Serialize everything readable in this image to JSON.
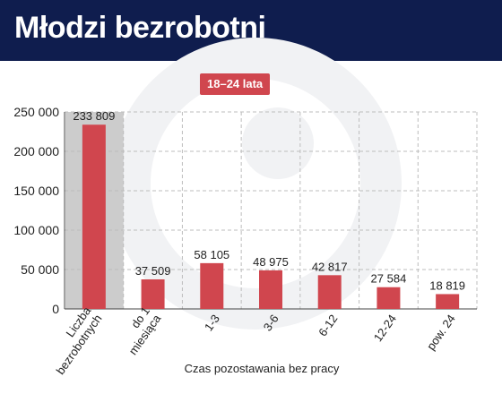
{
  "header": {
    "title": "Młodzi bezrobotni"
  },
  "badge": {
    "label": "18–24 lata"
  },
  "colors": {
    "header_bg": "#0f1d4e",
    "bar": "#d0464e",
    "highlight_column": "#cccccc",
    "badge": "#d0464e"
  },
  "chart_data": {
    "type": "bar",
    "title": "Młodzi bezrobotni",
    "subtitle": "18–24 lata",
    "xlabel": "Czas pozostawania bez pracy",
    "ylabel": "",
    "ylim": [
      0,
      250000
    ],
    "yticks": [
      "0",
      "50 000",
      "100 000",
      "150 000",
      "200 000",
      "250 000"
    ],
    "ytick_values": [
      0,
      50000,
      100000,
      150000,
      200000,
      250000
    ],
    "grid": true,
    "categories": [
      [
        "Liczba",
        "bezrobotnych"
      ],
      [
        "do 1",
        "miesiąca"
      ],
      [
        "1-3"
      ],
      [
        "3-6"
      ],
      [
        "6-12"
      ],
      [
        "12-24"
      ],
      [
        "pow. 24"
      ]
    ],
    "values": [
      233809,
      37509,
      58105,
      48975,
      42817,
      27584,
      18819
    ],
    "value_labels": [
      "233 809",
      "37 509",
      "58 105",
      "48 975",
      "42 817",
      "27 584",
      "18 819"
    ]
  }
}
